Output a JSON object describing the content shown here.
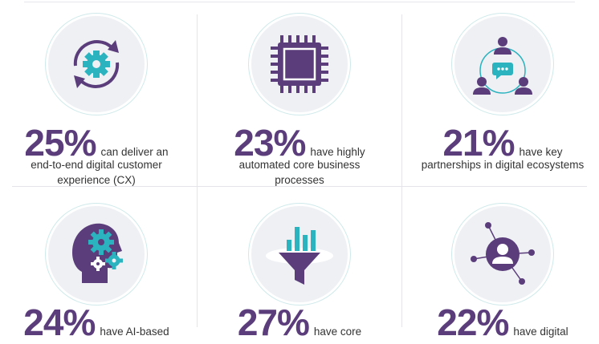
{
  "stats": [
    {
      "percent": "25%",
      "lead": "can deliver an",
      "desc1": "end-to-end digital customer",
      "desc2": "experience (CX)",
      "icon": "gear-cycle-icon"
    },
    {
      "percent": "23%",
      "lead": "have highly",
      "desc1": "automated core business",
      "desc2": "processes",
      "icon": "chip-icon"
    },
    {
      "percent": "21%",
      "lead": "have key",
      "desc1": "partnerships in digital ecosystems",
      "desc2": "",
      "icon": "network-people-icon"
    },
    {
      "percent": "24%",
      "lead": "have AI-based",
      "icon": "ai-head-icon"
    },
    {
      "percent": "27%",
      "lead": "have core",
      "icon": "funnel-chart-icon"
    },
    {
      "percent": "22%",
      "lead": "have digital",
      "icon": "user-hub-icon"
    }
  ],
  "colors": {
    "purple": "#5a3d7a",
    "teal": "#2bb3bf",
    "circle_bg": "#eef0f4"
  }
}
